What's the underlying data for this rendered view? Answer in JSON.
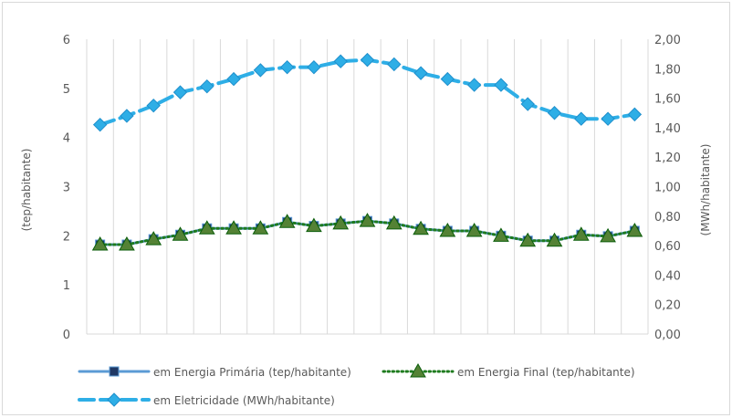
{
  "chart_data": {
    "type": "line",
    "categories": [
      "",
      "",
      "",
      "",
      "",
      "",
      "",
      "",
      "",
      "",
      "",
      "",
      "",
      "",
      "",
      "",
      "",
      "",
      "",
      "",
      ""
    ],
    "y_left": {
      "label": "(tep/habitante)",
      "range": [
        0,
        6
      ],
      "ticks": [
        "0",
        "1",
        "2",
        "3",
        "4",
        "5",
        "6"
      ]
    },
    "y_right": {
      "label": "(MWh/habitante)",
      "range": [
        0,
        2
      ],
      "ticks": [
        "0,00",
        "0,20",
        "0,40",
        "0,60",
        "0,80",
        "1,00",
        "1,20",
        "1,40",
        "1,60",
        "1,80",
        "2,00"
      ]
    },
    "grid": "vertical",
    "legend_position": "bottom",
    "series": [
      {
        "name": "em Energia Primária (tep/habitante)",
        "axis": "left",
        "color": "#5b9bd5",
        "line_style": "solid",
        "marker": "square",
        "values": [
          1.82,
          1.82,
          1.93,
          2.02,
          2.15,
          2.15,
          2.15,
          2.28,
          2.2,
          2.25,
          2.3,
          2.25,
          2.14,
          2.1,
          2.1,
          2.0,
          1.9,
          1.9,
          2.02,
          1.99,
          2.1
        ]
      },
      {
        "name": "em Energia Final (tep/habitante)",
        "axis": "left",
        "color": "#1e7b1e",
        "line_style": "dotted",
        "marker": "triangle",
        "values": [
          1.82,
          1.82,
          1.93,
          2.02,
          2.15,
          2.15,
          2.15,
          2.28,
          2.2,
          2.25,
          2.3,
          2.25,
          2.14,
          2.1,
          2.1,
          2.0,
          1.9,
          1.9,
          2.02,
          1.99,
          2.1
        ]
      },
      {
        "name": "em Eletricidade (MWh/habitante)",
        "axis": "right",
        "color": "#2eaee6",
        "line_style": "dashed",
        "marker": "diamond",
        "values": [
          1.42,
          1.48,
          1.55,
          1.64,
          1.68,
          1.73,
          1.79,
          1.81,
          1.81,
          1.85,
          1.86,
          1.83,
          1.77,
          1.73,
          1.69,
          1.69,
          1.56,
          1.5,
          1.46,
          1.46,
          1.49
        ]
      }
    ]
  }
}
